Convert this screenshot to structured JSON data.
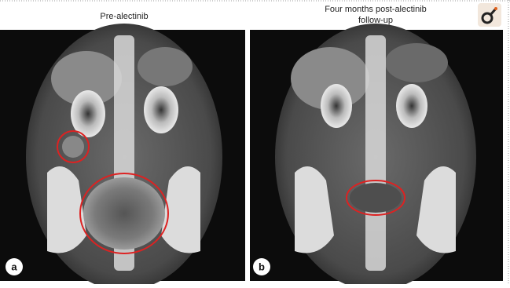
{
  "panels": [
    {
      "title": [
        "Pre-alectinib"
      ],
      "label": "a"
    },
    {
      "title": [
        "Four months post-alectinib",
        "follow-up"
      ],
      "label": "b"
    }
  ]
}
